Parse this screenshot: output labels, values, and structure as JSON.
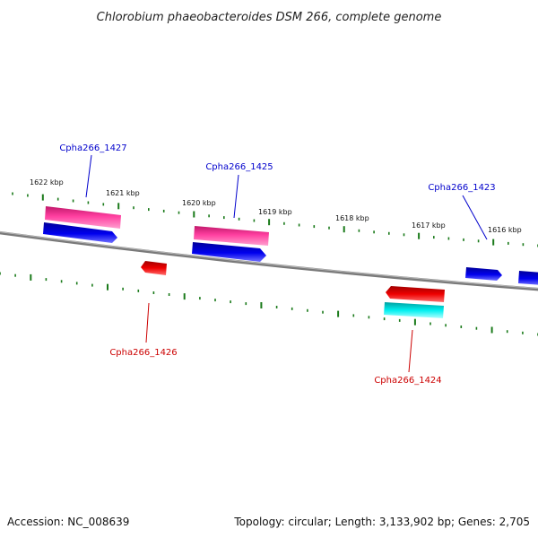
{
  "title": "Chlorobium phaeobacteroides DSM 266, complete genome",
  "footer": {
    "accession": "Accession: NC_008639",
    "summary": "Topology: circular; Length: 3,133,902 bp; Genes: 2,705"
  },
  "ticks": [
    {
      "label": "1622 kbp"
    },
    {
      "label": "1621 kbp"
    },
    {
      "label": "1620 kbp"
    },
    {
      "label": "1619 kbp"
    },
    {
      "label": "1618 kbp"
    },
    {
      "label": "1617 kbp"
    },
    {
      "label": "1616 kbp"
    }
  ],
  "genes": [
    {
      "label": "Cpha266_1427",
      "strand": "forward"
    },
    {
      "label": "Cpha266_1426",
      "strand": "reverse"
    },
    {
      "label": "Cpha266_1425",
      "strand": "forward"
    },
    {
      "label": "Cpha266_1424",
      "strand": "reverse"
    },
    {
      "label": "Cpha266_1423",
      "strand": "forward"
    }
  ],
  "colors": {
    "forward_gene": "#0000ee",
    "reverse_gene": "#ee0000",
    "forward_cds": "#ff3fa0",
    "reverse_cds": "#00f0f0",
    "backbone": "#808080",
    "tick": "#1a7a1a",
    "forward_label": "#0000cc",
    "reverse_label": "#cc0000"
  }
}
